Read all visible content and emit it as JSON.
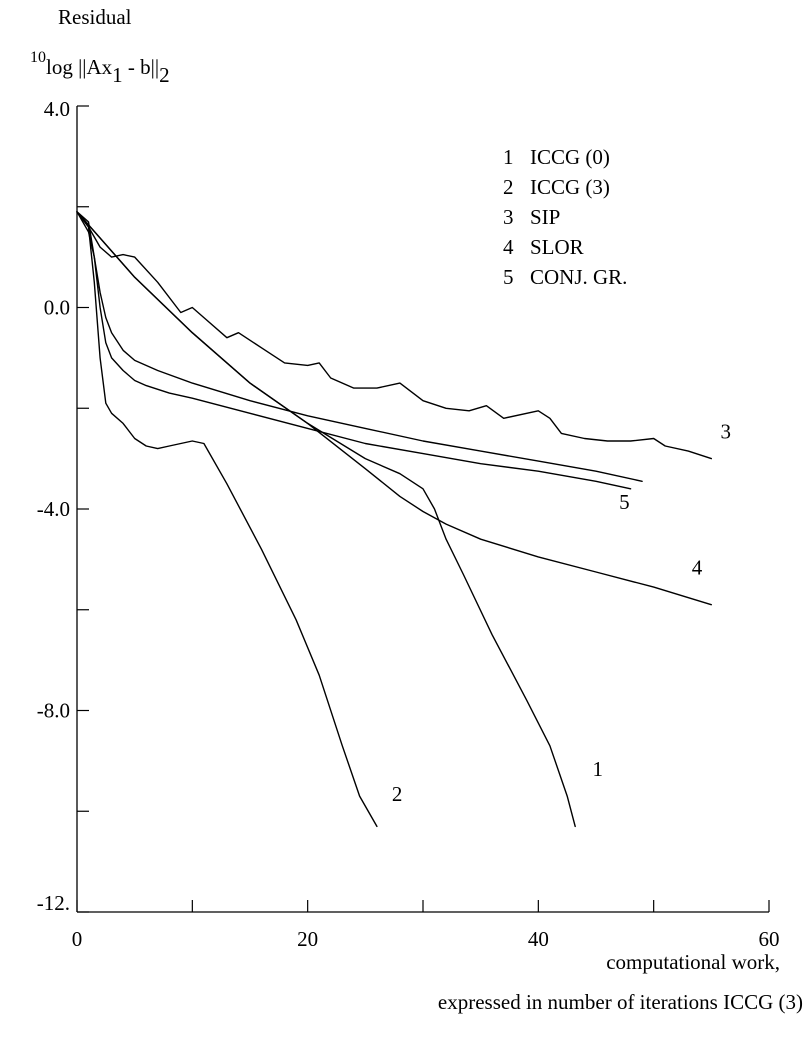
{
  "y_label": {
    "line1": "Residual",
    "sup": "10",
    "pre": "log ||Ax",
    "sub1": "1",
    "mid": " - b||",
    "sub2": "2"
  },
  "x_label": {
    "line1": "computational work,",
    "line2": "expressed in number of iterations ICCG  (3)"
  },
  "chart_data": {
    "type": "line",
    "xlim": [
      0,
      60
    ],
    "ylim": [
      -12,
      4
    ],
    "x_ticks": [
      0,
      10,
      20,
      30,
      40,
      50,
      60
    ],
    "x_tick_labels": [
      "0",
      "20",
      "40",
      "60"
    ],
    "x_tick_label_values": [
      0,
      20,
      40,
      60
    ],
    "y_ticks": [
      4,
      2,
      0,
      -2,
      -4,
      -6,
      -8,
      -10,
      -12
    ],
    "y_tick_labels": [
      "4.0",
      "0.0",
      "-4.0",
      "-8.0",
      "-12."
    ],
    "y_tick_label_values": [
      4,
      0,
      -4,
      -8,
      -12
    ],
    "grid": false,
    "legend": {
      "placement": "top-right",
      "entries": [
        {
          "num": "1",
          "name": "ICCG (0)"
        },
        {
          "num": "2",
          "name": "ICCG (3)"
        },
        {
          "num": "3",
          "name": "SIP"
        },
        {
          "num": "4",
          "name": "SLOR"
        },
        {
          "num": "5",
          "name": "CONJ. GR."
        }
      ]
    },
    "series": [
      {
        "name": "ICCG (0)",
        "label": "1",
        "label_at": [
          44.7,
          -9.3
        ],
        "x": [
          0,
          5,
          10,
          15,
          20,
          25,
          28,
          30,
          31,
          32,
          33.5,
          36,
          39,
          41,
          42.5,
          43.2
        ],
        "y": [
          1.9,
          0.6,
          -0.5,
          -1.5,
          -2.3,
          -3.0,
          -3.3,
          -3.6,
          -4.0,
          -4.6,
          -5.3,
          -6.5,
          -7.8,
          -8.7,
          -9.7,
          -10.3
        ]
      },
      {
        "name": "ICCG (3)",
        "label": "2",
        "label_at": [
          27.3,
          -9.8
        ],
        "x": [
          0,
          1,
          1.5,
          2,
          2.5,
          3,
          4,
          5,
          6,
          7,
          8,
          9,
          10,
          11,
          13,
          16,
          19,
          21,
          23,
          24.5,
          26
        ],
        "y": [
          1.9,
          1.6,
          0.5,
          -1.0,
          -1.9,
          -2.1,
          -2.3,
          -2.6,
          -2.75,
          -2.8,
          -2.75,
          -2.7,
          -2.65,
          -2.7,
          -3.5,
          -4.8,
          -6.2,
          -7.3,
          -8.7,
          -9.7,
          -10.3
        ]
      },
      {
        "name": "SIP",
        "label": "3",
        "label_at": [
          55.8,
          -2.6
        ],
        "x": [
          0,
          1,
          2,
          3,
          4,
          5,
          7,
          9,
          10,
          11,
          13,
          14,
          16,
          18,
          20,
          21,
          22,
          24,
          26,
          28,
          30,
          32,
          34,
          35.5,
          37,
          40,
          41,
          42,
          44,
          46,
          48,
          50,
          51,
          53,
          55
        ],
        "y": [
          1.9,
          1.6,
          1.2,
          1.0,
          1.05,
          1.0,
          0.5,
          -0.1,
          0.0,
          -0.2,
          -0.6,
          -0.5,
          -0.8,
          -1.1,
          -1.15,
          -1.1,
          -1.4,
          -1.6,
          -1.6,
          -1.5,
          -1.85,
          -2.0,
          -2.05,
          -1.95,
          -2.2,
          -2.05,
          -2.2,
          -2.5,
          -2.6,
          -2.65,
          -2.65,
          -2.6,
          -2.75,
          -2.85,
          -3.0
        ]
      },
      {
        "name": "SLOR",
        "label": "4",
        "label_at": [
          53.3,
          -5.3
        ],
        "x": [
          0,
          5,
          10,
          15,
          20,
          25,
          28,
          30,
          32,
          35,
          40,
          45,
          50,
          55
        ],
        "y": [
          1.9,
          0.6,
          -0.5,
          -1.5,
          -2.3,
          -3.2,
          -3.75,
          -4.05,
          -4.3,
          -4.6,
          -4.95,
          -5.25,
          -5.55,
          -5.9
        ]
      },
      {
        "name": "CONJ. GR.",
        "label": "5",
        "label_at": [
          47.0,
          -4.0
        ],
        "x": [
          0,
          1,
          1.5,
          2,
          2.5,
          3,
          4,
          5,
          7,
          10,
          15,
          20,
          25,
          30,
          35,
          40,
          45,
          49
        ],
        "y": [
          1.9,
          1.5,
          1.0,
          0.3,
          -0.2,
          -0.5,
          -0.85,
          -1.05,
          -1.25,
          -1.5,
          -1.85,
          -2.15,
          -2.4,
          -2.65,
          -2.85,
          -3.05,
          -3.25,
          -3.45
        ]
      },
      {
        "name": "",
        "label": "",
        "x": [
          0,
          1,
          1.5,
          2,
          2.5,
          3,
          4,
          5,
          6,
          8,
          10,
          15,
          20,
          25,
          30,
          35,
          40,
          45,
          48
        ],
        "y": [
          1.9,
          1.7,
          1.0,
          0.0,
          -0.7,
          -1.0,
          -1.25,
          -1.45,
          -1.55,
          -1.7,
          -1.8,
          -2.1,
          -2.4,
          -2.7,
          -2.9,
          -3.1,
          -3.25,
          -3.45,
          -3.6
        ]
      }
    ]
  }
}
